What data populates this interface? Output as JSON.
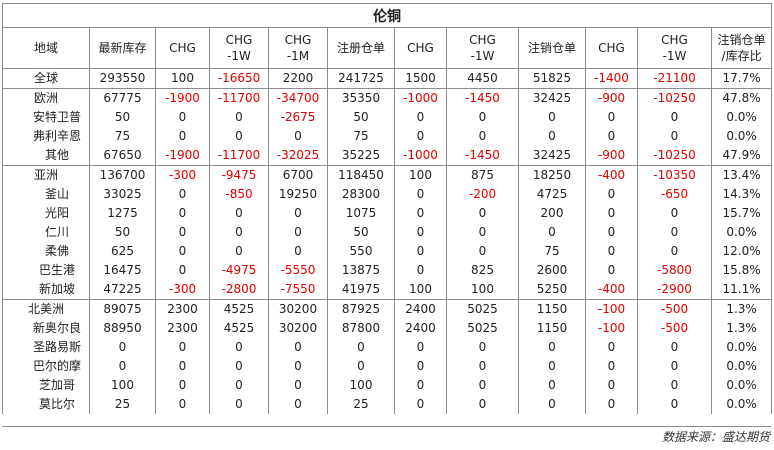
{
  "title": "伦铜",
  "headers": [
    "地域",
    "最新库存",
    "CHG",
    "CHG\n-1W",
    "CHG\n-1M",
    "注册仓单",
    "CHG",
    "CHG\n-1W",
    "注销仓单",
    "CHG",
    "CHG\n-1W",
    "注销仓单\n/库存比"
  ],
  "rows": [
    {
      "name": "全球",
      "level": "region",
      "cells": [
        "293550",
        "100",
        "-16650",
        "2200",
        "241725",
        "1500",
        "4450",
        "51825",
        "-1400",
        "-21100",
        "17.7%"
      ]
    },
    {
      "name": "欧洲",
      "level": "region",
      "cells": [
        "67775",
        "-1900",
        "-11700",
        "-34700",
        "35350",
        "-1000",
        "-1450",
        "32425",
        "-900",
        "-10250",
        "47.8%"
      ]
    },
    {
      "name": "安特卫普",
      "level": "sub",
      "cells": [
        "50",
        "0",
        "0",
        "-2675",
        "50",
        "0",
        "0",
        "0",
        "0",
        "0",
        "0.0%"
      ]
    },
    {
      "name": "弗利辛恩",
      "level": "sub",
      "cells": [
        "75",
        "0",
        "0",
        "0",
        "75",
        "0",
        "0",
        "0",
        "0",
        "0",
        "0.0%"
      ]
    },
    {
      "name": "其他",
      "level": "sub",
      "cells": [
        "67650",
        "-1900",
        "-11700",
        "-32025",
        "35225",
        "-1000",
        "-1450",
        "32425",
        "-900",
        "-10250",
        "47.9%"
      ]
    },
    {
      "name": "亚洲",
      "level": "region",
      "cells": [
        "136700",
        "-300",
        "-9475",
        "6700",
        "118450",
        "100",
        "875",
        "18250",
        "-400",
        "-10350",
        "13.4%"
      ]
    },
    {
      "name": "釜山",
      "level": "sub",
      "cells": [
        "33025",
        "0",
        "-850",
        "19250",
        "28300",
        "0",
        "-200",
        "4725",
        "0",
        "-650",
        "14.3%"
      ]
    },
    {
      "name": "光阳",
      "level": "sub",
      "cells": [
        "1275",
        "0",
        "0",
        "0",
        "1075",
        "0",
        "0",
        "200",
        "0",
        "0",
        "15.7%"
      ]
    },
    {
      "name": "仁川",
      "level": "sub",
      "cells": [
        "50",
        "0",
        "0",
        "0",
        "50",
        "0",
        "0",
        "0",
        "0",
        "0",
        "0.0%"
      ]
    },
    {
      "name": "柔佛",
      "level": "sub",
      "cells": [
        "625",
        "0",
        "0",
        "0",
        "550",
        "0",
        "0",
        "75",
        "0",
        "0",
        "12.0%"
      ]
    },
    {
      "name": "巴生港",
      "level": "sub",
      "cells": [
        "16475",
        "0",
        "-4975",
        "-5550",
        "13875",
        "0",
        "825",
        "2600",
        "0",
        "-5800",
        "15.8%"
      ]
    },
    {
      "name": "新加坡",
      "level": "sub",
      "cells": [
        "47225",
        "-300",
        "-2800",
        "-7550",
        "41975",
        "100",
        "100",
        "5250",
        "-400",
        "-2900",
        "11.1%"
      ]
    },
    {
      "name": "北美洲",
      "level": "region",
      "cells": [
        "89075",
        "2300",
        "4525",
        "30200",
        "87925",
        "2400",
        "5025",
        "1150",
        "-100",
        "-500",
        "1.3%"
      ]
    },
    {
      "name": "新奥尔良",
      "level": "sub",
      "cells": [
        "88950",
        "2300",
        "4525",
        "30200",
        "87800",
        "2400",
        "5025",
        "1150",
        "-100",
        "-500",
        "1.3%"
      ]
    },
    {
      "name": "圣路易斯",
      "level": "sub",
      "cells": [
        "0",
        "0",
        "0",
        "0",
        "0",
        "0",
        "0",
        "0",
        "0",
        "0",
        "0.0%"
      ]
    },
    {
      "name": "巴尔的摩",
      "level": "sub",
      "cells": [
        "0",
        "0",
        "0",
        "0",
        "0",
        "0",
        "0",
        "0",
        "0",
        "0",
        "0.0%"
      ]
    },
    {
      "name": "芝加哥",
      "level": "sub",
      "cells": [
        "100",
        "0",
        "0",
        "0",
        "100",
        "0",
        "0",
        "0",
        "0",
        "0",
        "0.0%"
      ]
    },
    {
      "name": "莫比尔",
      "level": "sub",
      "cells": [
        "25",
        "0",
        "0",
        "0",
        "25",
        "0",
        "0",
        "0",
        "0",
        "0",
        "0.0%"
      ]
    }
  ],
  "source": "数据来源：盛达期货",
  "colors": {
    "negative": "#e10000",
    "grid": "#8c8c8c",
    "text": "#222222"
  }
}
